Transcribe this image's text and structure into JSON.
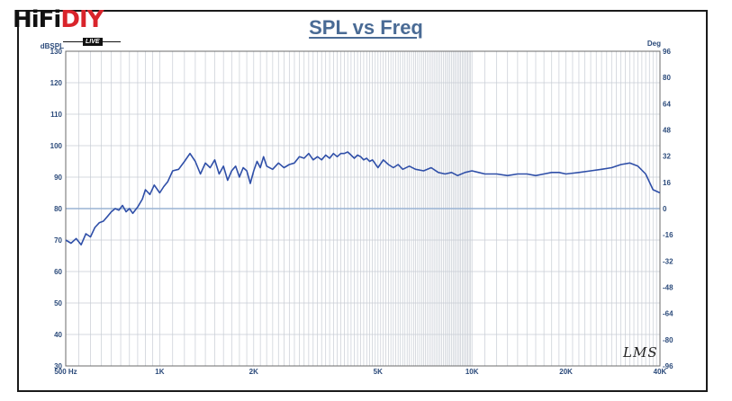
{
  "logo": {
    "text_main": "HiFi",
    "text_accent": "DIY",
    "sub": "LIVE"
  },
  "colors": {
    "series": "#2f4fa8",
    "grid": "#c7ccd4",
    "ref_line": "#9ab3d4",
    "tick": "#2b4a7a",
    "title": "#4a6b95"
  },
  "watermark": "LMS",
  "chart_data": {
    "type": "line",
    "title": "SPL vs Freq",
    "xlabel": "",
    "ylabel": "dBSPL",
    "y2label": "Deg",
    "xscale": "log",
    "xlim": [
      500,
      40000
    ],
    "ylim": [
      30,
      130
    ],
    "y2lim": [
      -96,
      96
    ],
    "grid": true,
    "reference_line_y": 80,
    "x_ticks": [
      {
        "value": 500,
        "label": "500 Hz"
      },
      {
        "value": 1000,
        "label": "1K"
      },
      {
        "value": 2000,
        "label": "2K"
      },
      {
        "value": 5000,
        "label": "5K"
      },
      {
        "value": 10000,
        "label": "10K"
      },
      {
        "value": 20000,
        "label": "20K"
      },
      {
        "value": 40000,
        "label": "40K"
      }
    ],
    "y_ticks": [
      130,
      120,
      110,
      100,
      90,
      80,
      70,
      60,
      50,
      40,
      30
    ],
    "y2_ticks": [
      "96",
      "80",
      "64",
      "48",
      "32",
      "16",
      "0",
      "-16",
      "-32",
      "-48",
      "-64",
      "-80",
      "-96"
    ],
    "series": [
      {
        "x": [
          500,
          520,
          540,
          560,
          580,
          600,
          620,
          640,
          660,
          680,
          700,
          720,
          740,
          760,
          780,
          800,
          820,
          850,
          880,
          900,
          930,
          960,
          1000,
          1030,
          1060,
          1100,
          1150,
          1200,
          1250,
          1300,
          1350,
          1400,
          1450,
          1500,
          1550,
          1600,
          1650,
          1700,
          1750,
          1800,
          1850,
          1900,
          1950,
          2000,
          2050,
          2100,
          2150,
          2200,
          2300,
          2400,
          2500,
          2600,
          2700,
          2800,
          2900,
          3000,
          3100,
          3200,
          3300,
          3400,
          3500,
          3600,
          3700,
          3800,
          3900,
          4000,
          4100,
          4200,
          4300,
          4400,
          4500,
          4600,
          4700,
          4800,
          5000,
          5200,
          5400,
          5600,
          5800,
          6000,
          6300,
          6600,
          7000,
          7400,
          7800,
          8200,
          8600,
          9000,
          9500,
          10000,
          10500,
          11000,
          12000,
          13000,
          14000,
          15000,
          16000,
          17000,
          18000,
          19000,
          20000,
          22000,
          24000,
          26000,
          28000,
          30000,
          32000,
          34000,
          36000,
          38000,
          40000
        ],
        "y": [
          70,
          69,
          70.5,
          68.5,
          72,
          71,
          74,
          75.5,
          76,
          77.5,
          79,
          80,
          79.5,
          81,
          79,
          80,
          78.5,
          80.5,
          83,
          86,
          84.5,
          87.5,
          85,
          87,
          88.5,
          92,
          92.5,
          95,
          97.5,
          95,
          91,
          94.5,
          93,
          95.5,
          91,
          93.5,
          89,
          92,
          93.5,
          90,
          93,
          92,
          88,
          92,
          95,
          93,
          96.5,
          93.5,
          92.5,
          94.5,
          93,
          94,
          94.5,
          96.5,
          96,
          97.5,
          95.5,
          96.5,
          95.5,
          97,
          96,
          97.5,
          96.5,
          97.5,
          97.5,
          98,
          97,
          96,
          97,
          96.5,
          95.5,
          96,
          95,
          95.5,
          93,
          95.5,
          94,
          93,
          94,
          92.5,
          93.5,
          92.5,
          92,
          93,
          91.5,
          91,
          91.5,
          90.5,
          91.5,
          92,
          91.5,
          91,
          91,
          90.5,
          91,
          91,
          90.5,
          91,
          91.5,
          91.5,
          91,
          91.5,
          92,
          92.5,
          93,
          94,
          94.5,
          93.5,
          91,
          86,
          85
        ]
      }
    ]
  }
}
